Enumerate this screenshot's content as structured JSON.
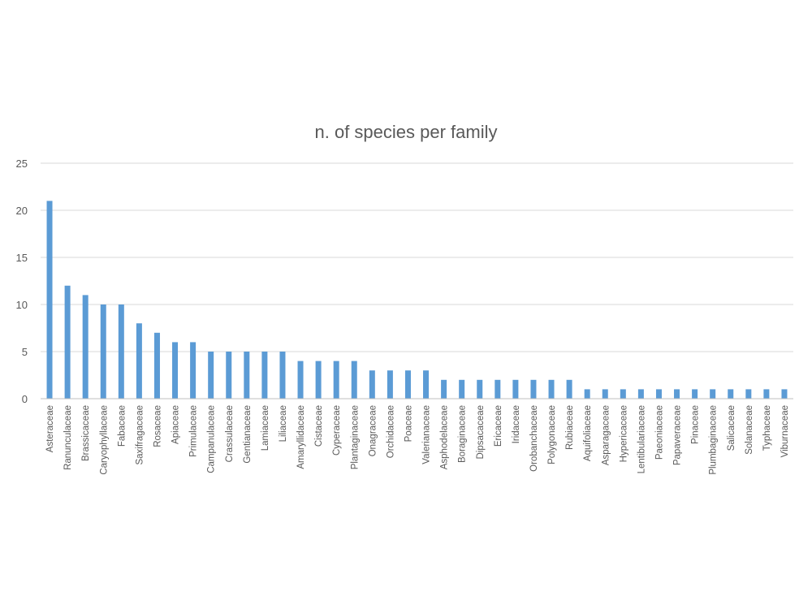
{
  "chart_data": {
    "type": "bar",
    "title": "n. of species per family",
    "xlabel": "",
    "ylabel": "",
    "ylim": [
      0,
      25
    ],
    "yticks": [
      0,
      5,
      10,
      15,
      20,
      25
    ],
    "grid": true,
    "legend": "none",
    "bar_color": "#5b9bd5",
    "categories": [
      "Asteraceae",
      "Ranunculaceae",
      "Brassicaceae",
      "Caryophyllaceae",
      "Fabaceae",
      "Saxifragaceae",
      "Rosaceae",
      "Apiaceae",
      "Primulaceae",
      "Campanulaceae",
      "Crassulaceae",
      "Gentianaceae",
      "Lamiaceae",
      "Liliaceae",
      "Amaryllidaceae",
      "Cistaceae",
      "Cyperaceae",
      "Plantaginaceae",
      "Onagraceae",
      "Orchidaceae",
      "Poaceae",
      "Valerianaceae",
      "Asphodelaceae",
      "Boraginaceae",
      "Dipsacaceae",
      "Ericaceae",
      "Iridaceae",
      "Orobanchaceae",
      "Polygonaceae",
      "Rubiaceae",
      "Aquifoliaceae",
      "Asparagaceae",
      "Hypericaceae",
      "Lentibulariaceae",
      "Paeoniaceae",
      "Papaveraceae",
      "Pinaceae",
      "Plumbaginaceae",
      "Salicaceae",
      "Solanaceae",
      "Typhaceae",
      "Viburnaceae"
    ],
    "values": [
      21,
      12,
      11,
      10,
      10,
      8,
      7,
      6,
      6,
      5,
      5,
      5,
      5,
      5,
      4,
      4,
      4,
      4,
      3,
      3,
      3,
      3,
      2,
      2,
      2,
      2,
      2,
      2,
      2,
      2,
      1,
      1,
      1,
      1,
      1,
      1,
      1,
      1,
      1,
      1,
      1,
      1
    ]
  }
}
